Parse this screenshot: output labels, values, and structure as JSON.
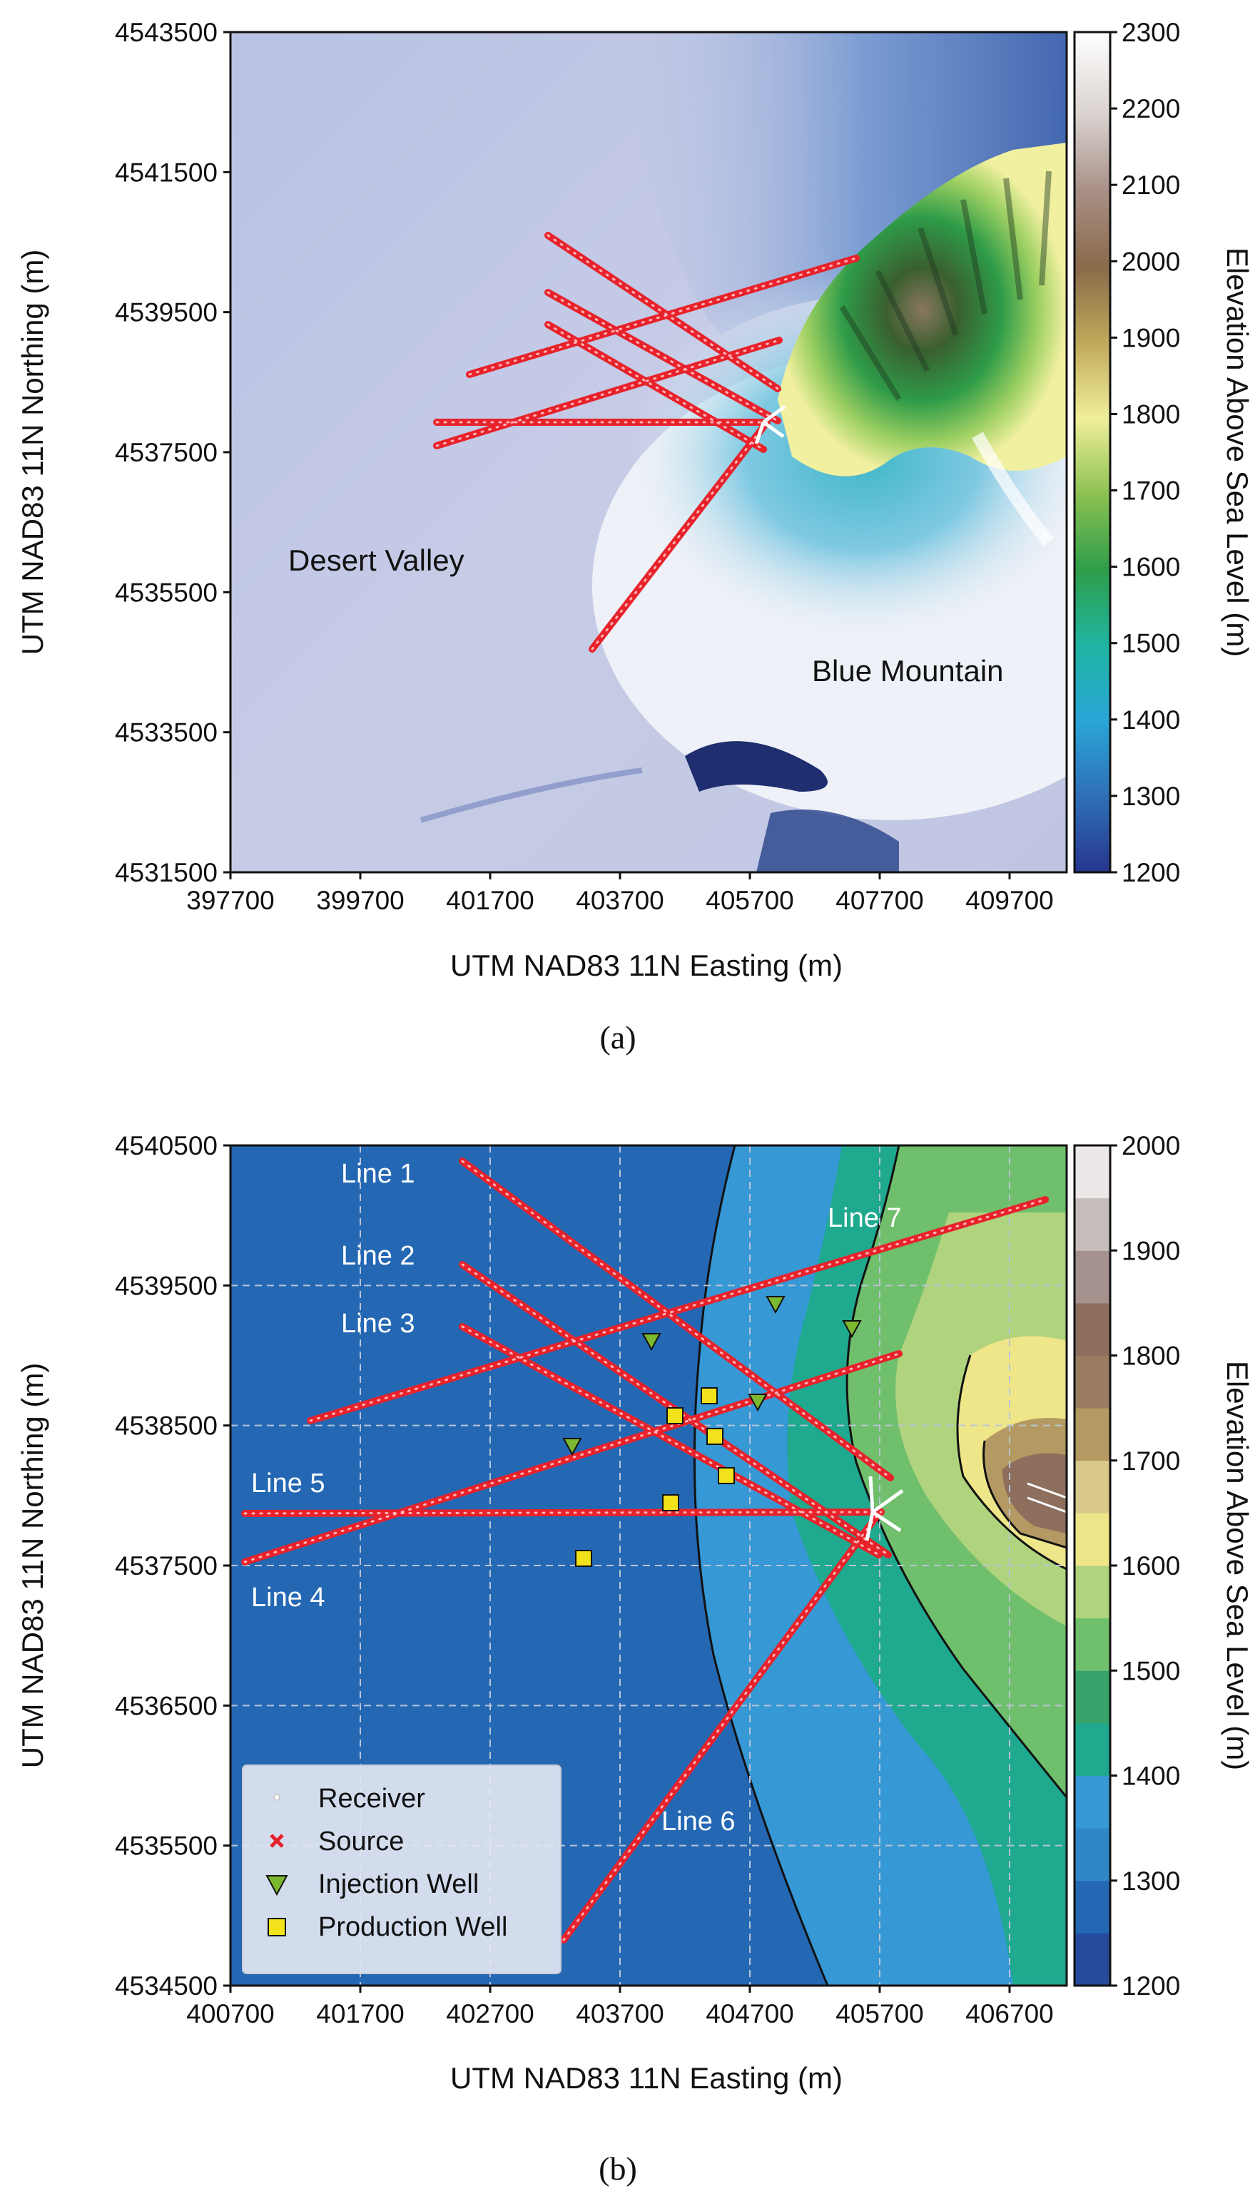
{
  "panel_a": {
    "caption": "(a)",
    "x_label": "UTM NAD83 11N Easting (m)",
    "y_label": "UTM NAD83 11N Northing (m)",
    "x_ticks": [
      "397700",
      "399700",
      "401700",
      "403700",
      "405700",
      "407700",
      "409700"
    ],
    "y_ticks": [
      "4543500",
      "4541500",
      "4539500",
      "4537500",
      "4535500",
      "4533500",
      "4531500"
    ],
    "colorbar_label": "Elevation Above Sea Level (m)",
    "colorbar_ticks": [
      "2300",
      "2200",
      "2100",
      "2000",
      "1900",
      "1800",
      "1700",
      "1600",
      "1500",
      "1400",
      "1300",
      "1200"
    ],
    "labels": {
      "desert": "Desert Valley",
      "mountain": "Blue Mountain"
    },
    "colors": {
      "lines": "#e8222b",
      "valley": "#c3c9e6",
      "mountain_green": "#2f9a45"
    }
  },
  "panel_b": {
    "caption": "(b)",
    "x_label": "UTM NAD83 11N Easting (m)",
    "y_label": "UTM NAD83 11N Northing (m)",
    "x_ticks": [
      "400700",
      "401700",
      "402700",
      "403700",
      "404700",
      "405700",
      "406700"
    ],
    "y_ticks": [
      "4540500",
      "4539500",
      "4538500",
      "4537500",
      "4536500",
      "4535500",
      "4534500"
    ],
    "colorbar_label": "Elevation Above Sea Level (m)",
    "colorbar_ticks": [
      "2000",
      "1900",
      "1800",
      "1700",
      "1600",
      "1500",
      "1400",
      "1300",
      "1200"
    ],
    "line_labels": [
      "Line 1",
      "Line 2",
      "Line 3",
      "Line 4",
      "Line 5",
      "Line 6",
      "Line 7"
    ],
    "legend": {
      "receiver": "Receiver",
      "source": "Source",
      "injection": "Injection Well",
      "production": "Production Well"
    },
    "colors": {
      "low": "#2468b4",
      "lines": "#e8222b",
      "injection": "#7cb82f",
      "production": "#f2e21c"
    }
  }
}
